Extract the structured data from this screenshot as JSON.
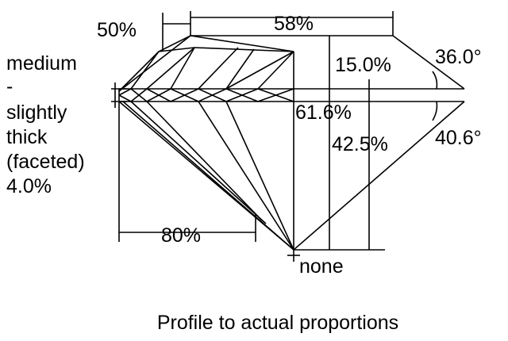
{
  "labels": {
    "crown_table_pct": "50%",
    "table_pct": "58%",
    "girdle_lines": [
      "medium",
      "-",
      "slightly",
      "thick",
      "(faceted)",
      "4.0%"
    ],
    "crown_height": "15.0%",
    "crown_angle": "36.0°",
    "total_depth": "61.6%",
    "pavilion_angle": "40.6°",
    "pavilion_depth": "42.5%",
    "lower_half": "80%",
    "culet": "none"
  },
  "caption": "Profile to actual proportions",
  "colors": {
    "line": "#000000",
    "background": "#ffffff"
  }
}
